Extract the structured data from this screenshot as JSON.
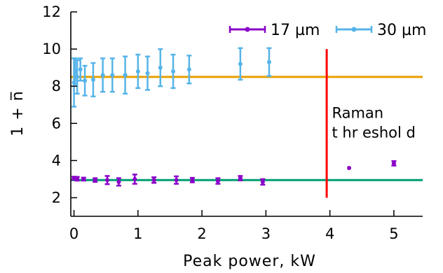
{
  "chart_data": {
    "type": "scatter",
    "title": "",
    "xlabel": "Peak power,  kW",
    "ylabel": "1 + n̅",
    "xlim": [
      -0.05,
      5.45
    ],
    "ylim": [
      1,
      12
    ],
    "xticks": [
      0,
      1,
      2,
      3,
      4,
      5
    ],
    "yticks": [
      2,
      4,
      6,
      8,
      10,
      12
    ],
    "grid": false,
    "legend_position": "top-right",
    "series": [
      {
        "name": "17  µm",
        "color": "#8B00C9",
        "points": [
          {
            "x": 0.0,
            "y": 3.05,
            "err": 0.08
          },
          {
            "x": 0.05,
            "y": 3.02,
            "err": 0.1
          },
          {
            "x": 0.15,
            "y": 3.0,
            "err": 0.08
          },
          {
            "x": 0.33,
            "y": 2.95,
            "err": 0.1
          },
          {
            "x": 0.52,
            "y": 2.95,
            "err": 0.22
          },
          {
            "x": 0.7,
            "y": 2.85,
            "err": 0.2
          },
          {
            "x": 0.95,
            "y": 3.0,
            "err": 0.25
          },
          {
            "x": 1.25,
            "y": 2.95,
            "err": 0.15
          },
          {
            "x": 1.6,
            "y": 2.95,
            "err": 0.2
          },
          {
            "x": 1.85,
            "y": 2.95,
            "err": 0.12
          },
          {
            "x": 2.25,
            "y": 2.9,
            "err": 0.15
          },
          {
            "x": 2.6,
            "y": 3.05,
            "err": 0.12
          },
          {
            "x": 2.95,
            "y": 2.85,
            "err": 0.15
          },
          {
            "x": 4.3,
            "y": 3.6,
            "err": 0.0
          },
          {
            "x": 5.0,
            "y": 3.85,
            "err": 0.12
          }
        ]
      },
      {
        "name": "30  µm",
        "color": "#56B4E9",
        "points": [
          {
            "x": 0.0,
            "y": 8.2,
            "err": 1.3
          },
          {
            "x": 0.02,
            "y": 8.8,
            "err": 0.7
          },
          {
            "x": 0.05,
            "y": 8.5,
            "err": 0.9
          },
          {
            "x": 0.1,
            "y": 8.9,
            "err": 0.6
          },
          {
            "x": 0.17,
            "y": 8.3,
            "err": 0.8
          },
          {
            "x": 0.3,
            "y": 8.35,
            "err": 0.9
          },
          {
            "x": 0.45,
            "y": 8.6,
            "err": 0.9
          },
          {
            "x": 0.6,
            "y": 8.6,
            "err": 0.9
          },
          {
            "x": 0.8,
            "y": 8.6,
            "err": 1.0
          },
          {
            "x": 1.0,
            "y": 8.8,
            "err": 0.9
          },
          {
            "x": 1.15,
            "y": 8.7,
            "err": 0.9
          },
          {
            "x": 1.35,
            "y": 9.0,
            "err": 1.0
          },
          {
            "x": 1.55,
            "y": 8.8,
            "err": 0.9
          },
          {
            "x": 1.8,
            "y": 8.9,
            "err": 0.75
          },
          {
            "x": 2.6,
            "y": 9.2,
            "err": 0.85
          },
          {
            "x": 3.05,
            "y": 9.3,
            "err": 0.75
          }
        ]
      }
    ],
    "reference_lines": [
      {
        "orientation": "horizontal",
        "value": 8.5,
        "color": "#E69F00"
      },
      {
        "orientation": "horizontal",
        "value": 2.95,
        "color": "#009E73"
      },
      {
        "orientation": "vertical",
        "value": 3.95,
        "y_range": [
          2,
          10
        ],
        "color": "#FF0000"
      }
    ],
    "annotations": [
      {
        "text_lines": [
          "Raman",
          "t hr eshol d"
        ],
        "x": 4.25,
        "y": 6.3
      }
    ]
  }
}
